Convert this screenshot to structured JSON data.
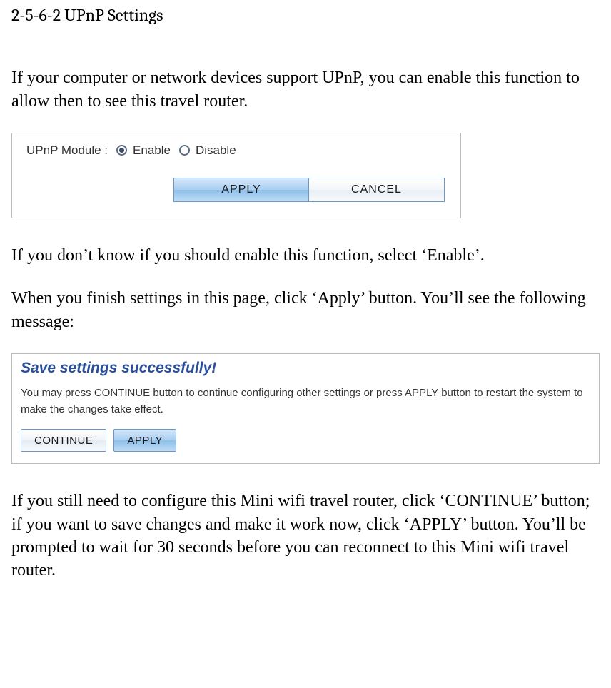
{
  "heading": "2-5-6-2 UPnP Settings",
  "intro": "If your computer or network devices support UPnP, you can enable this function to allow then to see this travel router.",
  "fig1": {
    "label": "UPnP Module :",
    "options": {
      "enable": "Enable",
      "disable": "Disable"
    },
    "selected": "enable",
    "buttons": {
      "apply": "APPLY",
      "cancel": "CANCEL"
    }
  },
  "mid1": "If you don’t know if you should enable this function, select ‘Enable’.",
  "mid2": "When you finish settings in this page, click ‘Apply’ button. You’ll see the following message:",
  "fig2": {
    "title": "Save settings successfully!",
    "body": "You may press CONTINUE button to continue configuring other settings or press APPLY button to restart the system to make the changes take effect.",
    "buttons": {
      "continue": "CONTINUE",
      "apply": "APPLY"
    }
  },
  "outro": "If you still need to configure this Mini wifi travel router, click ‘CONTINUE’ button; if you want to save changes and make it work now, click ‘APPLY’ button. You’ll be prompted to wait for 30 seconds before you can reconnect to this Mini wifi travel router."
}
